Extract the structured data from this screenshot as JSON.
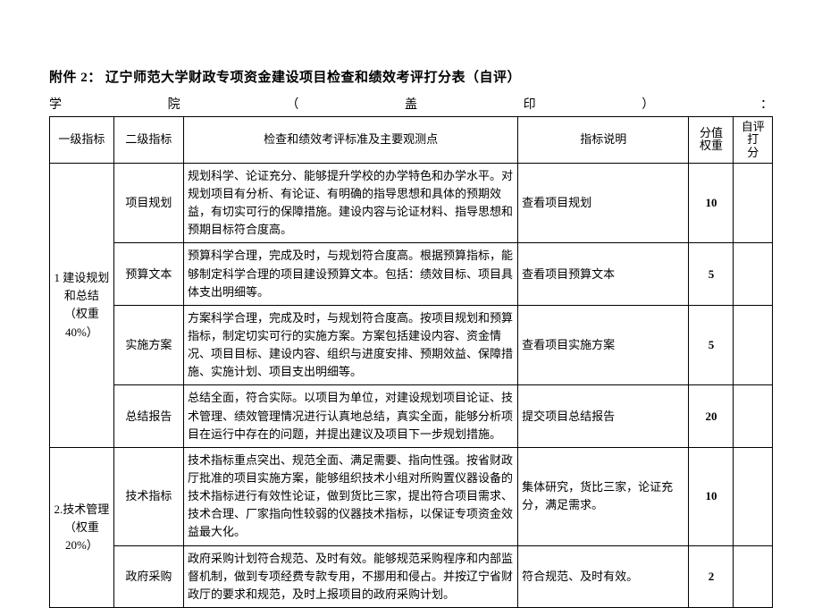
{
  "page": {
    "background_color": "#ffffff",
    "text_color": "#000000",
    "border_color": "#000000",
    "font_family": "SimSun",
    "base_font_size_pt": 10
  },
  "header": {
    "title": "附件 2： 辽宁师范大学财政专项资金建设项目检查和绩效考评打分表（自评）",
    "subtitle_parts": [
      "学",
      "院",
      "（",
      "盖",
      "印",
      "）",
      "："
    ]
  },
  "columns": {
    "level1": "一级指标",
    "level2": "二级指标",
    "criteria": "检查和绩效考评标准及主要观测点",
    "explain": "指标说明",
    "weight_l1": "分值",
    "weight_l2": "权重",
    "self_l1": "自评打",
    "self_l2": "分"
  },
  "sections": [
    {
      "level1_label": "1 建设规划和总结（权重40%）",
      "rows": [
        {
          "level2": "项目规划",
          "criteria": "规划科学、论证充分、能够提升学校的办学特色和办学水平。对规划项目有分析、有论证、有明确的指导思想和具体的预期效益，有切实可行的保障措施。建设内容与论证材料、指导思想和预期目标符合度高。",
          "explain": "查看项目规划",
          "weight": "10",
          "self": ""
        },
        {
          "level2": "预算文本",
          "criteria": "预算科学合理，完成及时，与规划符合度高。根据预算指标，能够制定科学合理的项目建设预算文本。包括：绩效目标、项目具体支出明细等。",
          "explain": "查看项目预算文本",
          "weight": "5",
          "self": ""
        },
        {
          "level2": "实施方案",
          "criteria": "方案科学合理，完成及时，与规划符合度高。按项目规划和预算指标，制定切实可行的实施方案。方案包括建设内容、资金情况、项目目标、建设内容、组织与进度安排、预期效益、保障措施、实施计划、项目支出明细等。",
          "explain": "查看项目实施方案",
          "weight": "5",
          "self": ""
        },
        {
          "level2": "总结报告",
          "criteria": "总结全面，符合实际。以项目为单位，对建设规划项目论证、技术管理、绩效管理情况进行认真地总结，真实全面，能够分析项目在运行中存在的问题，并提出建议及项目下一步规划措施。",
          "explain": "提交项目总结报告",
          "weight": "20",
          "self": ""
        }
      ]
    },
    {
      "level1_label": "2.技术管理（权重 20%）",
      "rows": [
        {
          "level2": "技术指标",
          "criteria": "技术指标重点突出、规范全面、满足需要、指向性强。按省财政厅批准的项目实施方案，能够组织技术小组对所购置仪器设备的技术指标进行有效性论证，做到货比三家，提出符合项目需求、技术合理、厂家指向性较弱的仪器技术指标，以保证专项资金效益最大化。",
          "explain": "集体研究，货比三家，论证充分，满足需求。",
          "weight": "10",
          "self": ""
        },
        {
          "level2": "政府采购",
          "criteria": "政府采购计划符合规范、及时有效。能够规范采购程序和内部监督机制，做到专项经费专款专用，不挪用和侵占。并按辽宁省财政厅的要求和规范，及时上报项目的政府采购计划。",
          "explain": "符合规范、及时有效。",
          "weight": "2",
          "self": ""
        }
      ]
    }
  ]
}
